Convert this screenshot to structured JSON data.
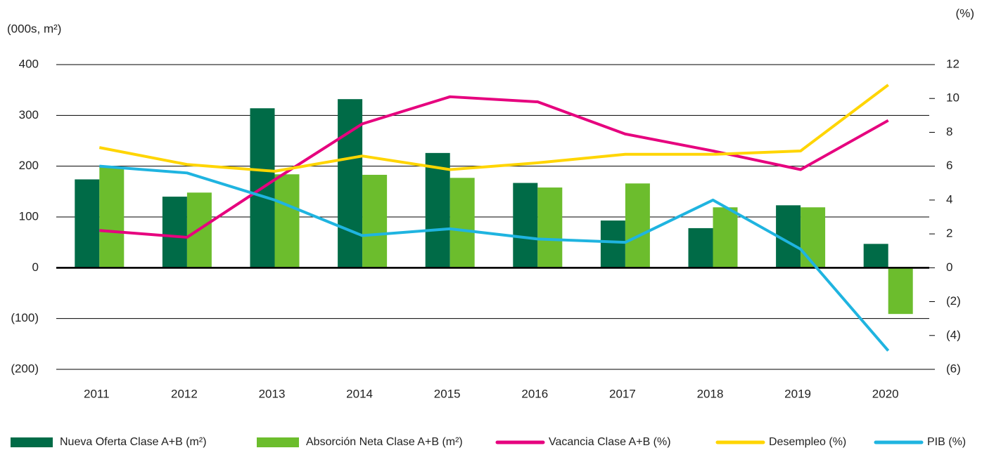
{
  "chart_data": {
    "type": "bar",
    "y_label": "(000s, m²)",
    "y2_label": "(%)",
    "categories": [
      "2011",
      "2012",
      "2013",
      "2014",
      "2015",
      "2016",
      "2017",
      "2018",
      "2019",
      "2020"
    ],
    "series": [
      {
        "name": "Nueva Oferta Clase A+B (m²)",
        "type": "bar",
        "color": "#006b47",
        "values": [
          174,
          140,
          314,
          332,
          226,
          167,
          93,
          78,
          123,
          47
        ]
      },
      {
        "name": "Absorción Neta Clase A+B (m²)",
        "type": "bar",
        "color": "#6cbd2d",
        "values": [
          199,
          148,
          184,
          183,
          177,
          158,
          166,
          119,
          119,
          -91
        ]
      },
      {
        "name": "Vacancia Clase A+B (%)",
        "type": "line",
        "axis": "y2",
        "color": "#e6007e",
        "values": [
          2.2,
          1.8,
          5.2,
          8.5,
          10.1,
          9.8,
          7.9,
          6.9,
          5.8,
          8.7
        ]
      },
      {
        "name": "Desempleo (%)",
        "type": "line",
        "axis": "y2",
        "color": "#ffd500",
        "values": [
          7.1,
          6.1,
          5.7,
          6.6,
          5.8,
          6.2,
          6.7,
          6.7,
          6.9,
          10.8
        ]
      },
      {
        "name": "PIB (%)",
        "type": "line",
        "axis": "y2",
        "color": "#1fb4e0",
        "values": [
          6.0,
          5.6,
          4.0,
          1.9,
          2.3,
          1.7,
          1.5,
          4.0,
          1.1,
          -4.9
        ]
      }
    ],
    "ylim": [
      -200,
      400
    ],
    "yticks": [
      400,
      300,
      200,
      100,
      0,
      {
        "value": -100,
        "label": "(100)"
      },
      {
        "value": -200,
        "label": "(200)"
      }
    ],
    "y2lim": [
      -6,
      12
    ],
    "y2ticks": [
      12,
      10,
      8,
      6,
      4,
      2,
      0,
      {
        "value": -2,
        "label": "(2)"
      },
      {
        "value": -4,
        "label": "(4)"
      },
      {
        "value": -6,
        "label": "(6)"
      }
    ],
    "grid": true,
    "legend": "bottom"
  }
}
